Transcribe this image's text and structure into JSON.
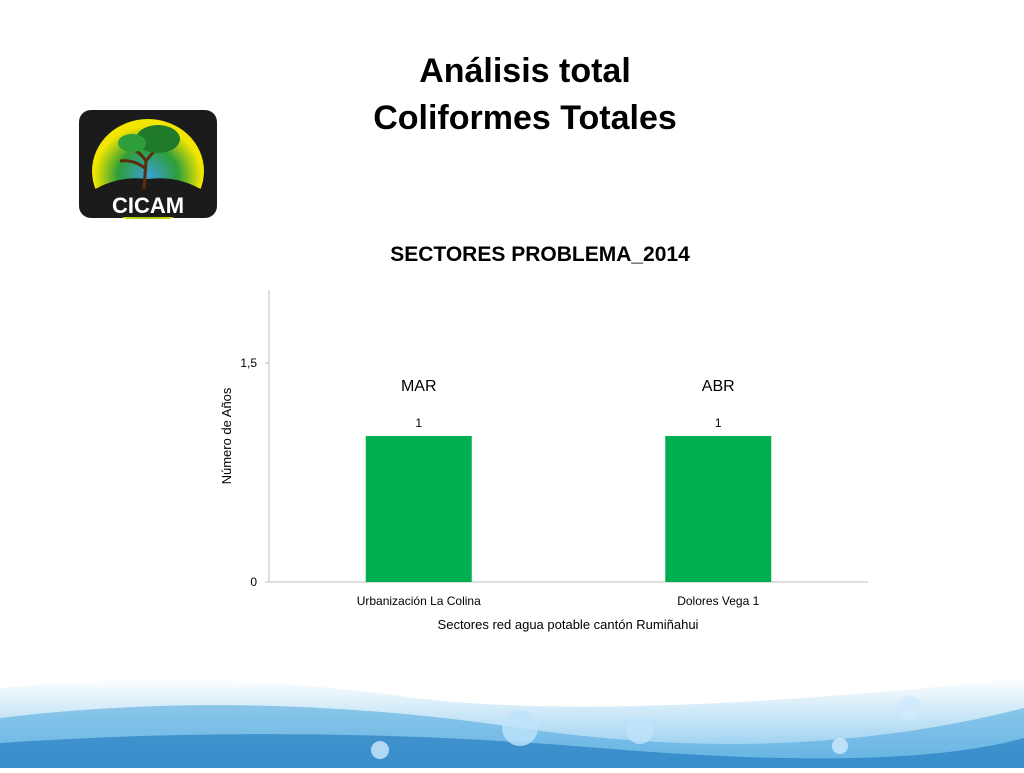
{
  "slide": {
    "title_line1": "Análisis total",
    "title_line2": "Coliformes Totales"
  },
  "logo": {
    "text": "CICAM",
    "colors": {
      "frame": "#1b1b1b",
      "green": "#2e9e3a",
      "yellow": "#f2e600",
      "blue": "#3aa0d8"
    }
  },
  "chart_data": {
    "type": "bar",
    "title": "SECTORES PROBLEMA_2014",
    "categories": [
      "Urbanización La Colina",
      "Dolores Vega 1"
    ],
    "values": [
      1,
      1
    ],
    "data_labels": [
      "1",
      "1"
    ],
    "annotations": [
      "MAR",
      "ABR"
    ],
    "xlabel": "Sectores red agua potable cantón Rumiñahui",
    "ylabel": "Número de Años",
    "ylim": [
      0,
      2
    ],
    "y_ticks": [
      0,
      1.5
    ],
    "y_tick_labels": [
      "0",
      "1,5"
    ],
    "bar_color": "#00b050",
    "grid": false,
    "legend": false
  }
}
